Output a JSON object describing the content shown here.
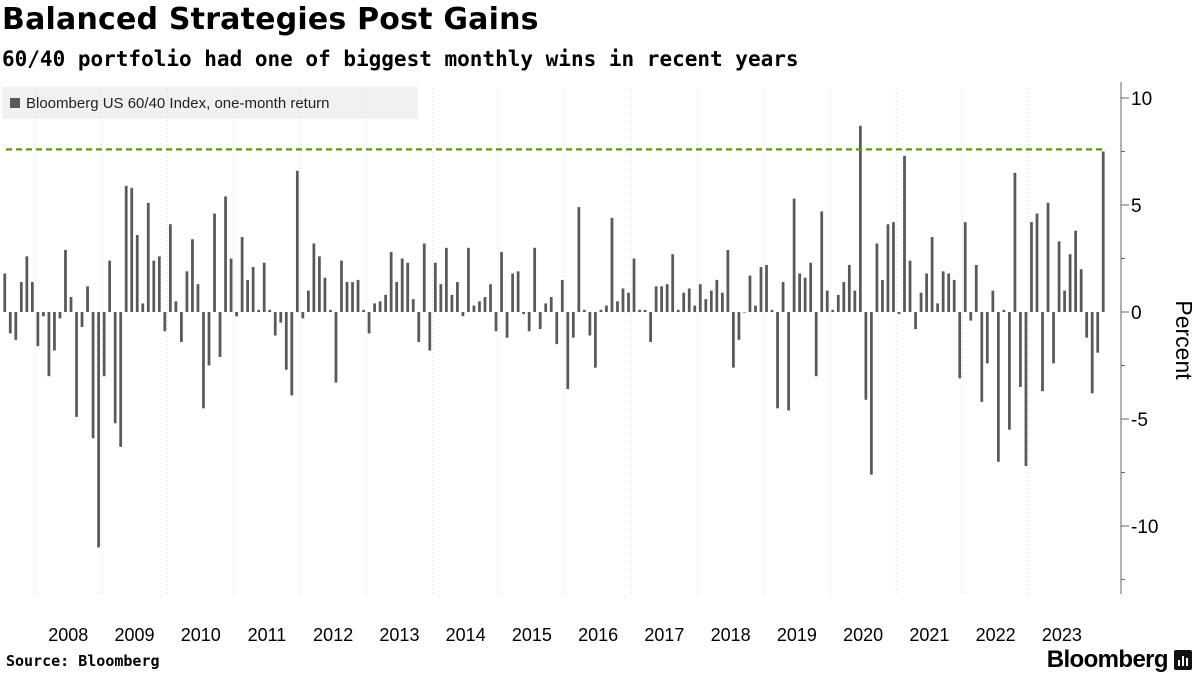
{
  "header": {
    "title": "Balanced Strategies Post Gains",
    "subtitle": "60/40 portfolio had one of biggest monthly wins in recent years"
  },
  "footer": {
    "source": "Source: Bloomberg",
    "brand": "Bloomberg"
  },
  "colors": {
    "bar": "#595959",
    "reference_line": "#5a9a0a",
    "axis": "#666666",
    "gridline": "#d9d9d9"
  },
  "chart_data": {
    "type": "bar",
    "title": "Balanced Strategies Post Gains",
    "subtitle": "60/40 portfolio had one of biggest monthly wins in recent years",
    "legend": "Bloomberg US 60/40 Index, one-month return",
    "legend_position": "top-left",
    "ylabel": "Percent",
    "xlabel": "",
    "ylim": [
      -12.5,
      10.5
    ],
    "yticks": [
      10,
      5,
      0,
      -5,
      -10
    ],
    "ytick_labels": [
      "10",
      "5",
      "0",
      "-5",
      "-10"
    ],
    "y_axis_side": "right",
    "x_start": "2007-07",
    "x_end": "2023-11",
    "year_labels": [
      "2008",
      "2009",
      "2010",
      "2011",
      "2012",
      "2013",
      "2014",
      "2015",
      "2016",
      "2017",
      "2018",
      "2019",
      "2020",
      "2021",
      "2022",
      "2023"
    ],
    "reference_line": {
      "value": 7.6,
      "style": "dashed"
    },
    "grid": "vertical year separators",
    "values": [
      1.8,
      -1.0,
      -1.3,
      1.4,
      2.6,
      1.4,
      -1.6,
      -0.2,
      -3.0,
      -1.8,
      -0.3,
      2.9,
      0.7,
      -4.9,
      -0.7,
      1.2,
      -5.9,
      -11.0,
      -3.0,
      2.4,
      -5.2,
      -6.3,
      5.9,
      5.8,
      3.6,
      0.4,
      5.1,
      2.4,
      2.6,
      -0.9,
      4.1,
      0.5,
      -1.4,
      1.9,
      3.4,
      1.3,
      -4.5,
      -2.5,
      4.6,
      -2.1,
      5.4,
      2.5,
      -0.2,
      3.5,
      1.5,
      2.1,
      0.1,
      2.3,
      0.1,
      -1.1,
      -0.5,
      -2.7,
      -3.9,
      6.6,
      -0.3,
      1.0,
      3.2,
      2.6,
      1.6,
      0.1,
      -3.3,
      2.4,
      1.4,
      1.4,
      1.5,
      0.1,
      -1.0,
      0.4,
      0.5,
      0.8,
      2.8,
      1.4,
      2.5,
      2.3,
      0.6,
      -1.4,
      3.2,
      -1.8,
      2.3,
      1.3,
      3.0,
      0.8,
      1.4,
      -0.2,
      3.0,
      0.3,
      0.5,
      0.7,
      1.3,
      -0.9,
      2.8,
      -1.2,
      1.8,
      1.9,
      -0.1,
      -0.9,
      3.0,
      -0.8,
      0.4,
      0.7,
      -1.5,
      1.5,
      -3.6,
      -1.2,
      4.9,
      0.1,
      -1.1,
      -2.6,
      0.1,
      0.3,
      4.4,
      0.5,
      1.1,
      0.9,
      2.5,
      0.1,
      0.1,
      -1.4,
      1.2,
      1.2,
      1.3,
      2.7,
      0.1,
      0.9,
      1.1,
      0.3,
      1.3,
      0.6,
      1.0,
      1.5,
      0.9,
      2.9,
      -2.6,
      -1.3,
      0.0,
      1.7,
      0.3,
      2.1,
      2.2,
      0.1,
      -4.5,
      1.4,
      -4.6,
      5.3,
      1.8,
      1.6,
      2.3,
      -3.0,
      4.7,
      1.0,
      0.1,
      0.8,
      1.4,
      2.2,
      1.0,
      8.7,
      -4.1,
      -7.6,
      3.2,
      1.5,
      4.1,
      4.2,
      -0.1,
      7.3,
      2.4,
      -0.8,
      0.9,
      1.8,
      3.5,
      0.4,
      1.9,
      1.8,
      1.5,
      -3.1,
      4.2,
      -0.4,
      2.2,
      -4.2,
      -2.4,
      1.0,
      -7.0,
      0.1,
      -5.5,
      6.5,
      -3.5,
      -7.2,
      4.2,
      4.6,
      -3.7,
      5.1,
      -2.4,
      3.3,
      1.0,
      2.7,
      3.8,
      2.0,
      -1.2,
      -3.8,
      -1.9,
      7.5
    ]
  }
}
